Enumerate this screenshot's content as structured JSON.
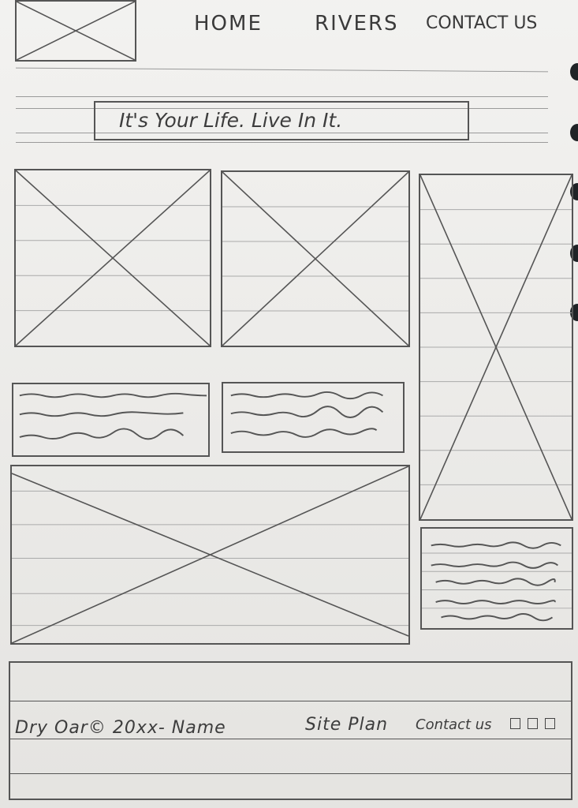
{
  "nav": {
    "items": [
      "HOME",
      "RIVERS",
      "CONTACT US"
    ]
  },
  "hero": {
    "tagline": "It's Your Life. Live In It."
  },
  "footer": {
    "copyright": "Dry Oar© 20xx- Name",
    "site_plan": "Site Plan",
    "contact": "Contact us"
  },
  "colors": {
    "paper": "#ecebe8",
    "pencil": "#555555",
    "rule": "#9a9a9a",
    "binder_hole": "#1f2326"
  },
  "icons": [
    "image-placeholder-icon",
    "social-square-icon"
  ]
}
